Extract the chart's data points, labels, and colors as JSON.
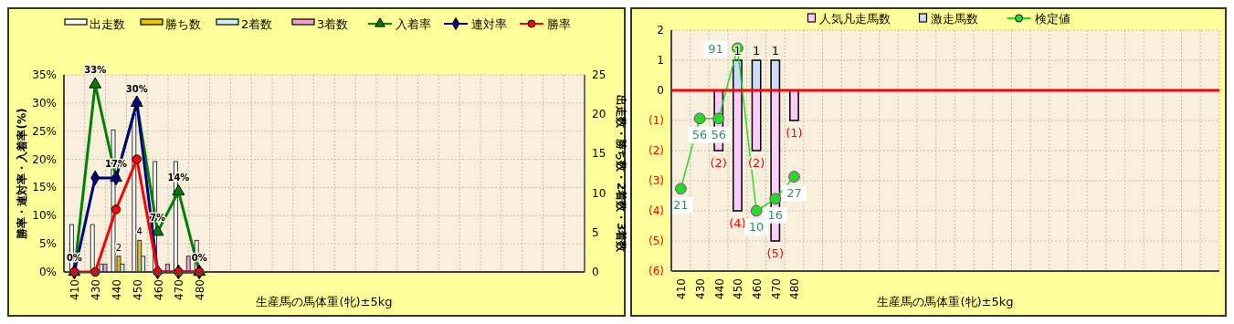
{
  "chart_data": [
    {
      "type": "bar",
      "xlabel": "生産馬の馬体重(牝)±5kg",
      "ylabel": "勝率・連対率・入着率(%)",
      "y2label": "出走数・勝ち数・2着数・3着数",
      "legend": "top",
      "grid": true,
      "categories": [
        "410",
        "430",
        "440",
        "450",
        "460",
        "470",
        "480",
        null,
        null,
        null,
        null,
        null,
        null,
        null,
        null,
        null,
        null,
        null,
        null,
        null,
        null,
        null,
        null,
        null,
        null
      ],
      "ylim": [
        0,
        35
      ],
      "yticks": [
        {
          "value": 0,
          "label": "0%"
        },
        {
          "value": 5,
          "label": "5%"
        },
        {
          "value": 10,
          "label": "10%"
        },
        {
          "value": 15,
          "label": "15%"
        },
        {
          "value": 20,
          "label": "20%"
        },
        {
          "value": 25,
          "label": "25%"
        },
        {
          "value": 30,
          "label": "30%"
        },
        {
          "value": 35,
          "label": "35%"
        }
      ],
      "y2lim": [
        0,
        25
      ],
      "y2ticks": [
        0,
        5,
        10,
        15,
        20,
        25
      ],
      "series": [
        {
          "name": "出走数",
          "axis": "y2",
          "color": "#ffffff",
          "values": [
            6,
            6,
            18,
            20,
            14,
            14,
            4,
            null,
            null,
            null,
            null,
            null,
            null,
            null,
            null,
            null,
            null,
            null,
            null,
            null,
            null,
            null,
            null,
            null,
            null
          ]
        },
        {
          "name": "勝ち数",
          "axis": "y2",
          "color": "#f0c000",
          "values": [
            0,
            0,
            2,
            4,
            0,
            0,
            0,
            null,
            null,
            null,
            null,
            null,
            null,
            null,
            null,
            null,
            null,
            null,
            null,
            null,
            null,
            null,
            null,
            null,
            null
          ],
          "value_labels": [
            null,
            null,
            "2",
            "4",
            null,
            null,
            null,
            null,
            null,
            null,
            null,
            null,
            null,
            null,
            null,
            null,
            null,
            null,
            null,
            null,
            null,
            null,
            null,
            null,
            null
          ]
        },
        {
          "name": "2着数",
          "axis": "y2",
          "color": "#c8f0f8",
          "values": [
            0,
            1,
            1,
            2,
            0,
            0,
            0,
            null,
            null,
            null,
            null,
            null,
            null,
            null,
            null,
            null,
            null,
            null,
            null,
            null,
            null,
            null,
            null,
            null,
            null
          ]
        },
        {
          "name": "3着数",
          "axis": "y2",
          "color": "#f0a0d0",
          "values": [
            0,
            1,
            0,
            0,
            1,
            2,
            0,
            null,
            null,
            null,
            null,
            null,
            null,
            null,
            null,
            null,
            null,
            null,
            null,
            null,
            null,
            null,
            null,
            null,
            null
          ]
        },
        {
          "name": "入着率",
          "type": "line",
          "axis": "y",
          "color": "#008000",
          "marker": "triangle",
          "line_style": "solid",
          "values": [
            0,
            33.3,
            16.7,
            30,
            7.1,
            14.3,
            0,
            null,
            null,
            null,
            null,
            null,
            null,
            null,
            null,
            null,
            null,
            null,
            null,
            null,
            null,
            null,
            null,
            null,
            null
          ],
          "value_labels": [
            "0%",
            "33%",
            "17%",
            "30%",
            "7%",
            "14%",
            "0%",
            null,
            null,
            null,
            null,
            null,
            null,
            null,
            null,
            null,
            null,
            null,
            null,
            null,
            null,
            null,
            null,
            null,
            null
          ]
        },
        {
          "name": "連対率",
          "type": "line",
          "axis": "y",
          "color": "#000080",
          "marker": "diamond",
          "line_style": "solid",
          "values": [
            0,
            16.7,
            16.7,
            30,
            0,
            0,
            0,
            null,
            null,
            null,
            null,
            null,
            null,
            null,
            null,
            null,
            null,
            null,
            null,
            null,
            null,
            null,
            null,
            null,
            null
          ]
        },
        {
          "name": "勝率",
          "type": "line",
          "axis": "y",
          "color": "#ff0000",
          "marker": "circle",
          "line_style": "solid",
          "values": [
            0,
            0,
            11.1,
            20,
            0,
            0,
            0,
            null,
            null,
            null,
            null,
            null,
            null,
            null,
            null,
            null,
            null,
            null,
            null,
            null,
            null,
            null,
            null,
            null,
            null
          ]
        }
      ]
    },
    {
      "type": "bar",
      "xlabel": "生産馬の馬体重(牝)±5kg",
      "legend": "top",
      "grid": true,
      "stacked": true,
      "categories": [
        "410",
        "430",
        "440",
        "450",
        "460",
        "470",
        "480",
        null,
        null,
        null,
        null,
        null,
        null,
        null,
        null,
        null,
        null,
        null,
        null,
        null,
        null,
        null,
        null,
        null,
        null,
        null,
        null,
        null,
        null
      ],
      "ylim": [
        -6,
        2
      ],
      "yticks": [
        {
          "value": -6,
          "label": "(6)"
        },
        {
          "value": -5,
          "label": "(5)"
        },
        {
          "value": -4,
          "label": "(4)"
        },
        {
          "value": -3,
          "label": "(3)"
        },
        {
          "value": -2,
          "label": "(2)"
        },
        {
          "value": -1,
          "label": "(1)"
        },
        0,
        1,
        2
      ],
      "y2lim": [
        -20,
        100
      ],
      "ref_lines": [
        {
          "axis": "y",
          "value": 0,
          "color": "#ff0000"
        }
      ],
      "series": [
        {
          "name": "人気凡走馬数",
          "axis": "y",
          "color": "#ffccff",
          "values": [
            null,
            null,
            -2,
            -4,
            -2,
            -5,
            -1,
            null,
            null,
            null,
            null,
            null,
            null,
            null,
            null,
            null,
            null,
            null,
            null,
            null,
            null,
            null,
            null,
            null,
            null,
            null,
            null,
            null,
            null
          ],
          "value_labels": [
            null,
            null,
            "(2)",
            "(4)",
            "(2)",
            "(5)",
            "(1)",
            null,
            null,
            null,
            null,
            null,
            null,
            null,
            null,
            null,
            null,
            null,
            null,
            null,
            null,
            null,
            null,
            null,
            null,
            null,
            null,
            null,
            null
          ]
        },
        {
          "name": "激走馬数",
          "axis": "y",
          "color": "#ccdcff",
          "values": [
            null,
            null,
            null,
            1,
            1,
            1,
            null,
            null,
            null,
            null,
            null,
            null,
            null,
            null,
            null,
            null,
            null,
            null,
            null,
            null,
            null,
            null,
            null,
            null,
            null,
            null,
            null,
            null,
            null
          ],
          "value_labels": [
            null,
            null,
            null,
            "1",
            "1",
            "1",
            null,
            null,
            null,
            null,
            null,
            null,
            null,
            null,
            null,
            null,
            null,
            null,
            null,
            null,
            null,
            null,
            null,
            null,
            null,
            null,
            null,
            null,
            null
          ]
        },
        {
          "name": "検定値",
          "type": "line",
          "axis": "y2",
          "color": "#22dd22",
          "marker": "circle",
          "line_style": "solid",
          "values": [
            21,
            56,
            56,
            91,
            10,
            16,
            27,
            null,
            null,
            null,
            null,
            null,
            null,
            null,
            null,
            null,
            null,
            null,
            null,
            null,
            null,
            null,
            null,
            null,
            null,
            null,
            null,
            null,
            null
          ],
          "value_labels": [
            "21",
            "56",
            "56",
            "91",
            "10",
            "16",
            "27",
            null,
            null,
            null,
            null,
            null,
            null,
            null,
            null,
            null,
            null,
            null,
            null,
            null,
            null,
            null,
            null,
            null,
            null,
            null,
            null,
            null,
            null
          ]
        }
      ]
    }
  ]
}
